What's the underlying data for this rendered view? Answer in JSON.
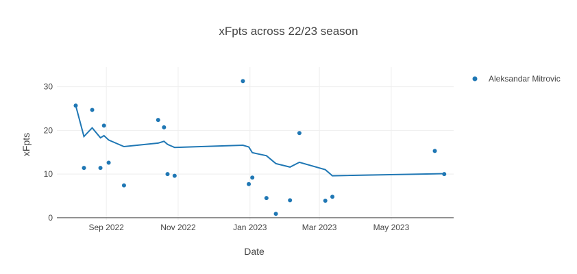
{
  "chart_data": {
    "type": "scatter",
    "title": "xFpts across 22/23 season",
    "xlabel": "Date",
    "ylabel": "xFpts",
    "xlim": [
      "2022-07-21",
      "2023-06-23"
    ],
    "ylim": [
      -0.5,
      34.5
    ],
    "x_ticks": [
      {
        "date": "2022-09-01",
        "label": "Sep 2022"
      },
      {
        "date": "2022-11-01",
        "label": "Nov 2022"
      },
      {
        "date": "2023-01-01",
        "label": "Jan 2023"
      },
      {
        "date": "2023-03-01",
        "label": "Mar 2023"
      },
      {
        "date": "2023-05-01",
        "label": "May 2023"
      }
    ],
    "y_ticks": [
      0,
      10,
      20,
      30
    ],
    "grid": true,
    "legend": "top-right",
    "series": [
      {
        "name": "Aleksandar Mitrovic",
        "mode": "markers",
        "color": "#1f77b4",
        "points": [
          {
            "x": "2022-08-06",
            "y": 25.7
          },
          {
            "x": "2022-08-13",
            "y": 11.4
          },
          {
            "x": "2022-08-20",
            "y": 24.7
          },
          {
            "x": "2022-08-27",
            "y": 11.4
          },
          {
            "x": "2022-08-30",
            "y": 21.1
          },
          {
            "x": "2022-09-03",
            "y": 12.6
          },
          {
            "x": "2022-09-16",
            "y": 7.4
          },
          {
            "x": "2022-10-15",
            "y": 22.4
          },
          {
            "x": "2022-10-20",
            "y": 20.7
          },
          {
            "x": "2022-10-23",
            "y": 10.0
          },
          {
            "x": "2022-10-29",
            "y": 9.6
          },
          {
            "x": "2022-12-26",
            "y": 31.3
          },
          {
            "x": "2022-12-31",
            "y": 7.7
          },
          {
            "x": "2023-01-03",
            "y": 9.2
          },
          {
            "x": "2023-01-15",
            "y": 4.5
          },
          {
            "x": "2023-01-23",
            "y": 0.9
          },
          {
            "x": "2023-02-04",
            "y": 4.0
          },
          {
            "x": "2023-02-12",
            "y": 19.4
          },
          {
            "x": "2023-03-06",
            "y": 3.9
          },
          {
            "x": "2023-03-12",
            "y": 4.8
          },
          {
            "x": "2023-06-07",
            "y": 15.3
          },
          {
            "x": "2023-06-15",
            "y": 10.0
          }
        ]
      },
      {
        "mode": "lines",
        "color": "#1f77b4",
        "points": [
          {
            "x": "2022-08-06",
            "y": 25.7
          },
          {
            "x": "2022-08-13",
            "y": 18.6
          },
          {
            "x": "2022-08-20",
            "y": 20.6
          },
          {
            "x": "2022-08-27",
            "y": 18.3
          },
          {
            "x": "2022-08-30",
            "y": 18.8
          },
          {
            "x": "2022-09-03",
            "y": 17.8
          },
          {
            "x": "2022-09-16",
            "y": 16.3
          },
          {
            "x": "2022-10-15",
            "y": 17.1
          },
          {
            "x": "2022-10-20",
            "y": 17.5
          },
          {
            "x": "2022-10-23",
            "y": 16.8
          },
          {
            "x": "2022-10-29",
            "y": 16.1
          },
          {
            "x": "2022-12-26",
            "y": 16.6
          },
          {
            "x": "2022-12-31",
            "y": 16.2
          },
          {
            "x": "2023-01-03",
            "y": 14.9
          },
          {
            "x": "2023-01-15",
            "y": 14.2
          },
          {
            "x": "2023-01-23",
            "y": 12.4
          },
          {
            "x": "2023-02-04",
            "y": 11.6
          },
          {
            "x": "2023-02-12",
            "y": 12.7
          },
          {
            "x": "2023-03-06",
            "y": 11.0
          },
          {
            "x": "2023-03-12",
            "y": 9.6
          },
          {
            "x": "2023-06-15",
            "y": 10.1
          }
        ]
      }
    ]
  }
}
